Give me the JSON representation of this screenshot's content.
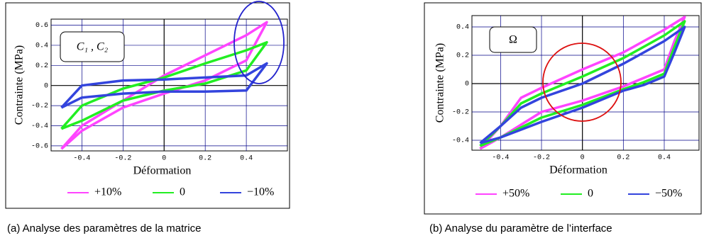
{
  "chart_data": [
    {
      "type": "line",
      "caption": "(a)  Analyse des paramètres de la matrice",
      "annotation": "C₁ , C₂",
      "xlabel": "Déformation",
      "ylabel": "Contrainte (MPa)",
      "xlim": [
        -0.55,
        0.6
      ],
      "ylim": [
        -0.65,
        0.66
      ],
      "xticks": [
        -0.4,
        -0.2,
        0,
        0.2,
        0.4
      ],
      "yticks": [
        -0.6,
        -0.4,
        -0.2,
        0,
        0.2,
        0.4,
        0.6
      ],
      "grid": true,
      "legend": "bottom",
      "series": [
        {
          "name": "+10%",
          "color": "#ff44ff",
          "x": [
            -0.5,
            -0.4,
            -0.2,
            0,
            0.2,
            0.4,
            0.5,
            0.4,
            0.2,
            0,
            -0.2,
            -0.4,
            -0.5
          ],
          "values": [
            -0.63,
            -0.4,
            -0.15,
            0.1,
            0.3,
            0.5,
            0.63,
            0.25,
            0.05,
            -0.08,
            -0.22,
            -0.45,
            -0.63
          ]
        },
        {
          "name": "0",
          "color": "#22ee22",
          "x": [
            -0.5,
            -0.4,
            -0.2,
            0,
            0.2,
            0.4,
            0.5,
            0.4,
            0.2,
            0,
            -0.2,
            -0.4,
            -0.5
          ],
          "values": [
            -0.43,
            -0.2,
            -0.03,
            0.08,
            0.22,
            0.35,
            0.43,
            0.15,
            0.02,
            -0.05,
            -0.15,
            -0.35,
            -0.43
          ]
        },
        {
          "name": "−10%",
          "color": "#3344dd",
          "x": [
            -0.5,
            -0.4,
            -0.2,
            0,
            0.2,
            0.4,
            0.5,
            0.4,
            0.2,
            0,
            -0.2,
            -0.4,
            -0.5
          ],
          "values": [
            -0.22,
            0.0,
            0.05,
            0.06,
            0.08,
            0.1,
            0.22,
            -0.05,
            -0.06,
            -0.06,
            -0.08,
            -0.12,
            -0.22
          ]
        }
      ]
    },
    {
      "type": "line",
      "caption": "(b)  Analyse du paramètre de l’interface",
      "annotation": "Ω",
      "xlabel": "Déformation",
      "ylabel": "Contrainte (MPa)",
      "xlim": [
        -0.54,
        0.57
      ],
      "ylim": [
        -0.47,
        0.48
      ],
      "xticks": [
        -0.4,
        -0.2,
        0,
        0.2,
        0.4
      ],
      "yticks": [
        -0.4,
        -0.2,
        0,
        0.2,
        0.4
      ],
      "grid": true,
      "legend": "bottom",
      "series": [
        {
          "name": "+50%",
          "color": "#ff44ff",
          "x": [
            -0.5,
            -0.4,
            -0.3,
            -0.2,
            0,
            0.2,
            0.4,
            0.5,
            0.45,
            0.4,
            0.3,
            0.2,
            0,
            -0.2,
            -0.4,
            -0.5
          ],
          "values": [
            -0.46,
            -0.3,
            -0.1,
            -0.03,
            0.1,
            0.22,
            0.38,
            0.47,
            0.3,
            0.1,
            0.04,
            -0.02,
            -0.12,
            -0.2,
            -0.38,
            -0.46
          ]
        },
        {
          "name": "0",
          "color": "#22ee22",
          "x": [
            -0.5,
            -0.4,
            -0.3,
            -0.2,
            0,
            0.2,
            0.4,
            0.5,
            0.45,
            0.4,
            0.3,
            0.2,
            0,
            -0.2,
            -0.4,
            -0.5
          ],
          "values": [
            -0.44,
            -0.3,
            -0.14,
            -0.07,
            0.05,
            0.18,
            0.34,
            0.44,
            0.26,
            0.07,
            0.01,
            -0.04,
            -0.15,
            -0.24,
            -0.38,
            -0.44
          ]
        },
        {
          "name": "−50%",
          "color": "#3344dd",
          "x": [
            -0.5,
            -0.4,
            -0.3,
            -0.2,
            0,
            0.2,
            0.4,
            0.5,
            0.45,
            0.4,
            0.3,
            0.2,
            0,
            -0.2,
            -0.4,
            -0.5
          ],
          "values": [
            -0.42,
            -0.3,
            -0.17,
            -0.1,
            0.0,
            0.14,
            0.3,
            0.4,
            0.22,
            0.05,
            -0.01,
            -0.05,
            -0.17,
            -0.27,
            -0.38,
            -0.42
          ]
        }
      ]
    }
  ]
}
